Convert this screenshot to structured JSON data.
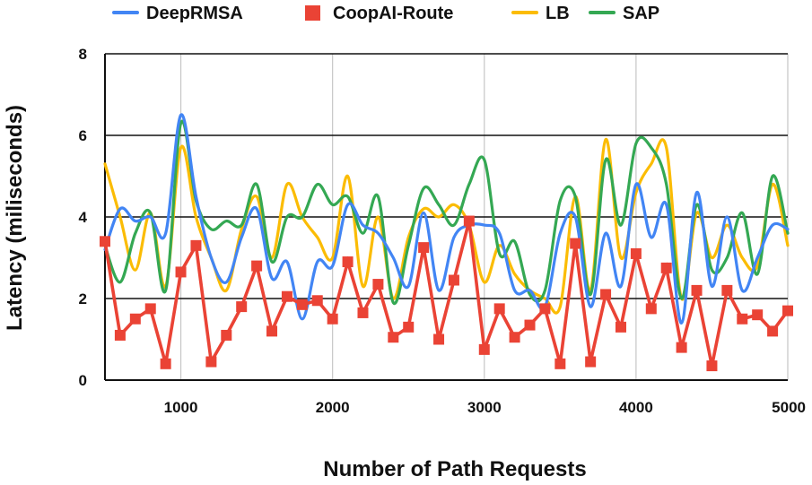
{
  "chart_data": {
    "type": "line",
    "xlabel": "Number of Path Requests",
    "ylabel": "Latency (miliseconds)",
    "xlim": [
      500,
      5000
    ],
    "ylim": [
      0,
      8
    ],
    "x_ticks": [
      1000,
      2000,
      3000,
      4000,
      5000
    ],
    "y_ticks": [
      0,
      2,
      4,
      6,
      8
    ],
    "grid": true,
    "legend_position": "top",
    "x": [
      500,
      600,
      700,
      800,
      900,
      1000,
      1100,
      1200,
      1300,
      1400,
      1500,
      1600,
      1700,
      1800,
      1900,
      2000,
      2100,
      2200,
      2300,
      2400,
      2500,
      2600,
      2700,
      2800,
      2900,
      3000,
      3100,
      3200,
      3300,
      3400,
      3500,
      3600,
      3700,
      3800,
      3900,
      4000,
      4100,
      4200,
      4300,
      4400,
      4500,
      4600,
      4700,
      4800,
      4900,
      5000
    ],
    "series": [
      {
        "name": "DeepRMSA",
        "color": "#4285f4",
        "style": "smooth",
        "values": [
          3.2,
          4.2,
          3.9,
          4.0,
          3.6,
          6.5,
          4.5,
          3.0,
          2.4,
          3.5,
          4.2,
          2.5,
          2.9,
          1.5,
          2.9,
          2.8,
          4.3,
          3.8,
          3.6,
          3.0,
          2.3,
          4.1,
          2.2,
          3.5,
          3.8,
          3.8,
          3.6,
          2.2,
          2.2,
          1.8,
          3.6,
          4.0,
          1.8,
          3.6,
          2.3,
          4.8,
          3.5,
          4.3,
          1.4,
          4.6,
          2.3,
          4.0,
          2.2,
          3.0,
          3.8,
          3.7
        ]
      },
      {
        "name": "CoopAI-Route",
        "color": "#ea4335",
        "style": "straight-markers",
        "values": [
          3.4,
          1.1,
          1.5,
          1.75,
          0.4,
          2.65,
          3.3,
          0.45,
          1.1,
          1.8,
          2.8,
          1.2,
          2.05,
          1.85,
          1.95,
          1.5,
          2.9,
          1.65,
          2.35,
          1.05,
          1.3,
          3.25,
          1.0,
          2.45,
          3.9,
          0.75,
          1.75,
          1.05,
          1.35,
          1.75,
          0.4,
          3.35,
          0.45,
          2.1,
          1.3,
          3.1,
          1.75,
          2.75,
          0.8,
          2.2,
          0.35,
          2.2,
          1.5,
          1.6,
          1.2,
          1.7
        ]
      },
      {
        "name": "LB",
        "color": "#fbbc04",
        "style": "smooth",
        "values": [
          5.3,
          4.0,
          2.7,
          4.1,
          2.3,
          5.7,
          4.0,
          3.0,
          2.2,
          3.7,
          4.5,
          3.0,
          4.8,
          4.0,
          3.5,
          3.0,
          5.0,
          2.3,
          4.0,
          2.0,
          3.5,
          4.2,
          4.0,
          4.3,
          3.8,
          2.4,
          3.3,
          2.6,
          2.2,
          2.0,
          1.8,
          4.5,
          2.2,
          5.9,
          3.0,
          4.6,
          5.3,
          5.7,
          2.0,
          4.1,
          3.0,
          3.8,
          3.0,
          2.8,
          4.8,
          3.3
        ]
      },
      {
        "name": "SAP",
        "color": "#34a853",
        "style": "smooth",
        "values": [
          3.3,
          2.4,
          3.6,
          4.1,
          2.2,
          6.3,
          4.4,
          3.7,
          3.9,
          3.8,
          4.8,
          2.9,
          4.0,
          4.0,
          4.8,
          4.3,
          4.5,
          3.6,
          4.5,
          1.9,
          3.3,
          4.7,
          4.3,
          3.8,
          4.8,
          5.4,
          3.1,
          3.4,
          2.1,
          2.2,
          4.4,
          4.5,
          2.1,
          5.4,
          3.8,
          5.8,
          5.7,
          4.8,
          2.0,
          4.3,
          2.7,
          3.0,
          4.1,
          2.6,
          5.0,
          3.6
        ]
      }
    ]
  }
}
